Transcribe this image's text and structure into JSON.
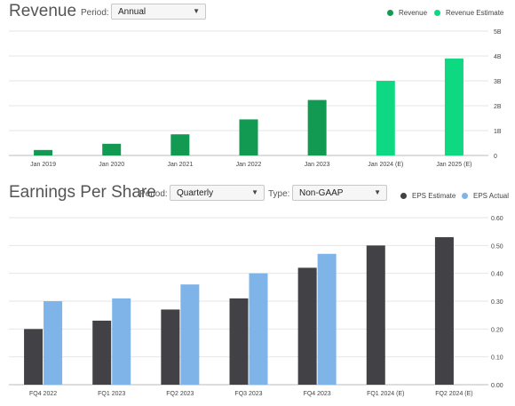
{
  "revenue": {
    "title": "Revenue",
    "period_label": "Period:",
    "period_value": "Annual",
    "legend": [
      {
        "label": "Revenue",
        "color": "#129a52"
      },
      {
        "label": "Revenue Estimate",
        "color": "#0fd882"
      }
    ]
  },
  "eps": {
    "title": "Earnings Per Share",
    "period_label": "Period:",
    "period_value": "Quarterly",
    "type_label": "Type:",
    "type_value": "Non-GAAP",
    "legend": [
      {
        "label": "EPS Estimate",
        "color": "#414146"
      },
      {
        "label": "EPS Actual",
        "color": "#7fb4e8"
      }
    ]
  },
  "icons": {
    "caret": "dropdown-caret-icon"
  },
  "chart_data": [
    {
      "type": "bar",
      "title": "Revenue",
      "categories": [
        "Jan 2019",
        "Jan 2020",
        "Jan 2021",
        "Jan 2022",
        "Jan 2023",
        "Jan 2024 (E)",
        "Jan 2025 (E)"
      ],
      "series": [
        {
          "name": "Revenue",
          "color": "#129a52",
          "values": [
            0.22,
            0.47,
            0.85,
            1.45,
            2.23,
            null,
            null
          ]
        },
        {
          "name": "Revenue Estimate",
          "color": "#0fd882",
          "values": [
            null,
            null,
            null,
            null,
            null,
            3.0,
            3.9
          ]
        }
      ],
      "yticks": [
        "5B",
        "4B",
        "3B",
        "2B",
        "1B",
        "0"
      ],
      "ylim": [
        0,
        5
      ],
      "grid": true,
      "legend_position": "top-right"
    },
    {
      "type": "bar",
      "title": "Earnings Per Share",
      "categories": [
        "FQ4 2022",
        "FQ1 2023",
        "FQ2 2023",
        "FQ3 2023",
        "FQ4 2023",
        "FQ1 2024 (E)",
        "FQ2 2024 (E)"
      ],
      "series": [
        {
          "name": "EPS Estimate",
          "color": "#414146",
          "values": [
            0.2,
            0.23,
            0.27,
            0.31,
            0.42,
            0.5,
            0.53
          ]
        },
        {
          "name": "EPS Actual",
          "color": "#7fb4e8",
          "values": [
            0.3,
            0.31,
            0.36,
            0.4,
            0.47,
            null,
            null
          ]
        }
      ],
      "yticks": [
        "0.60",
        "0.50",
        "0.40",
        "0.30",
        "0.20",
        "0.10",
        "0.00"
      ],
      "ylim": [
        0,
        0.6
      ],
      "grid": true,
      "legend_position": "top-right"
    }
  ]
}
